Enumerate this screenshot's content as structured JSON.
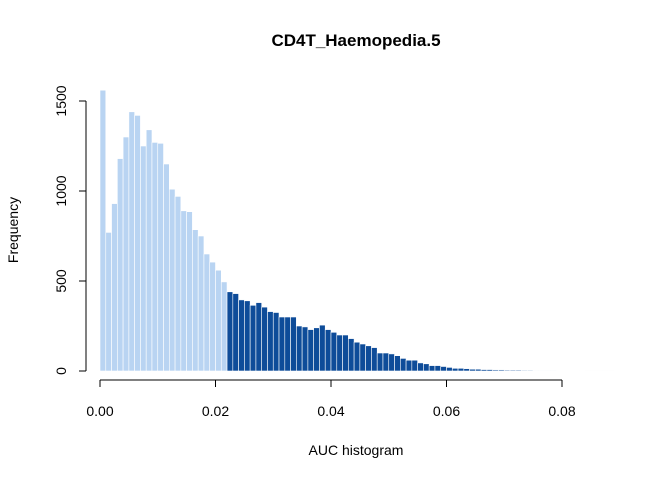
{
  "chart_data": {
    "type": "bar",
    "title": "CD4T_Haemopedia.5",
    "xlabel": "AUC histogram",
    "ylabel": "Frequency",
    "xlim": [
      0,
      0.089
    ],
    "ylim": [
      0,
      1570
    ],
    "x_ticks": [
      0.0,
      0.02,
      0.04,
      0.06,
      0.08
    ],
    "x_tick_labels": [
      "0.00",
      "0.02",
      "0.04",
      "0.06",
      "0.08"
    ],
    "y_ticks": [
      0,
      500,
      1000,
      1500
    ],
    "y_tick_labels": [
      "0",
      "500",
      "1000",
      "1500"
    ],
    "bin_width": 0.001,
    "threshold": 0.022,
    "colors": {
      "below_threshold": "#b9d4f2",
      "above_threshold": "#0e4c99"
    },
    "values": [
      1560,
      770,
      930,
      1180,
      1300,
      1440,
      1420,
      1250,
      1340,
      1270,
      1265,
      1150,
      1010,
      970,
      890,
      885,
      785,
      750,
      650,
      605,
      560,
      495,
      440,
      430,
      395,
      390,
      365,
      380,
      355,
      330,
      325,
      300,
      300,
      300,
      250,
      245,
      230,
      240,
      255,
      230,
      215,
      200,
      200,
      180,
      160,
      150,
      140,
      130,
      100,
      100,
      95,
      85,
      70,
      60,
      60,
      45,
      40,
      30,
      30,
      25,
      20,
      15,
      15,
      13,
      10,
      10,
      8,
      8,
      6,
      6,
      5,
      5,
      5,
      4,
      4,
      3,
      3,
      3,
      3,
      2,
      2,
      2,
      2,
      2,
      1,
      1,
      1,
      1,
      1
    ]
  }
}
